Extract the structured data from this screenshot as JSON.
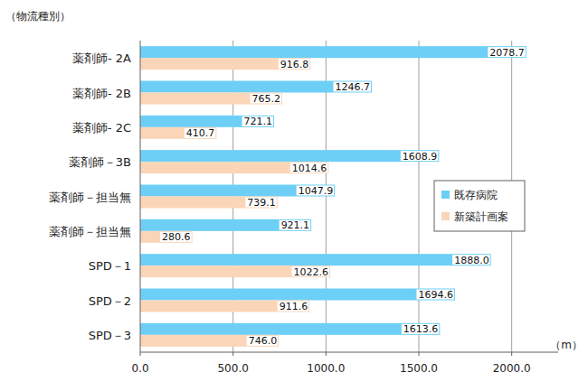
{
  "chart_data": {
    "type": "bar",
    "orientation": "horizontal",
    "y_label": "（物流種別）",
    "x_label": "（m）",
    "categories": [
      "薬剤師- 2A",
      "薬剤師- 2B",
      "薬剤師- 2C",
      "薬剤師－3B",
      "薬剤師－担当無",
      "薬剤師－担当無",
      "SPD－1",
      "SPD－2",
      "SPD－3"
    ],
    "series": [
      {
        "name": "既存病院",
        "color": "#6dcff6",
        "values": [
          2078.7,
          1246.7,
          721.1,
          1608.9,
          1047.9,
          921.1,
          1888.0,
          1694.6,
          1613.6
        ],
        "value_labels": [
          "2078.7",
          "1246.7",
          "721.1",
          "1608.9",
          "1047.9",
          "921.1",
          "1888.0",
          "1694.6",
          "1613.6"
        ]
      },
      {
        "name": "新築計画案",
        "color": "#fbd5b8",
        "values": [
          916.8,
          765.2,
          410.7,
          1014.6,
          739.1,
          280.6,
          1022.6,
          911.6,
          746.0
        ],
        "value_labels": [
          "916.8",
          "765.2",
          "410.7",
          "1014.6",
          "739.1",
          "280.6",
          "1022.6",
          "911.6",
          "746.0"
        ]
      }
    ],
    "xlim": [
      0,
      2250
    ],
    "xticks": [
      {
        "value": 0,
        "label": "0.0"
      },
      {
        "value": 500,
        "label": "500.0"
      },
      {
        "value": 1000,
        "label": "1000.0"
      },
      {
        "value": 1500,
        "label": "1500.0"
      },
      {
        "value": 2000,
        "label": "2000.0"
      }
    ],
    "grid": true,
    "legend": "right",
    "data_labels": true
  }
}
